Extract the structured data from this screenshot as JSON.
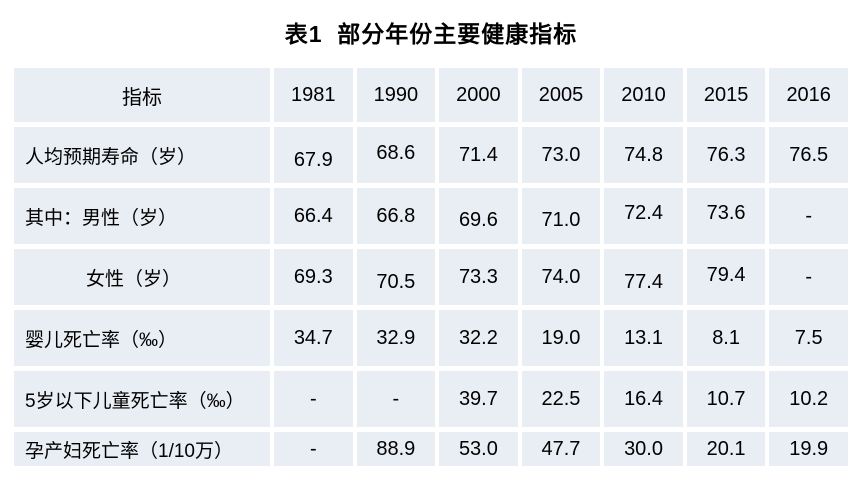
{
  "title": "表1  部分年份主要健康指标",
  "colors": {
    "cell_background": "#e9edf4",
    "grid_gap": "#ffffff",
    "text": "#000000"
  },
  "table": {
    "header": [
      "指标",
      "1981",
      "1990",
      "2000",
      "2005",
      "2010",
      "2015",
      "2016"
    ],
    "rows": [
      {
        "label": "人均预期寿命（岁）",
        "indent": false,
        "values": [
          "67.9",
          "68.6",
          "71.4",
          "73.0",
          "74.8",
          "76.3",
          "76.5"
        ]
      },
      {
        "label": "其中：男性（岁）",
        "indent": false,
        "values": [
          "66.4",
          "66.8",
          "69.6",
          "71.0",
          "72.4",
          "73.6",
          "-"
        ]
      },
      {
        "label": "女性（岁）",
        "indent": true,
        "values": [
          "69.3",
          "70.5",
          "73.3",
          "74.0",
          "77.4",
          "79.4",
          "-"
        ]
      },
      {
        "label": "婴儿死亡率（‰）",
        "indent": false,
        "values": [
          "34.7",
          "32.9",
          "32.2",
          "19.0",
          "13.1",
          "8.1",
          "7.5"
        ]
      },
      {
        "label": "5岁以下儿童死亡率（‰）",
        "indent": false,
        "values": [
          "-",
          "-",
          "39.7",
          "22.5",
          "16.4",
          "10.7",
          "10.2"
        ]
      },
      {
        "label": "孕产妇死亡率（1/10万）",
        "indent": false,
        "values": [
          "-",
          "88.9",
          "53.0",
          "47.7",
          "30.0",
          "20.1",
          "19.9"
        ]
      }
    ]
  }
}
